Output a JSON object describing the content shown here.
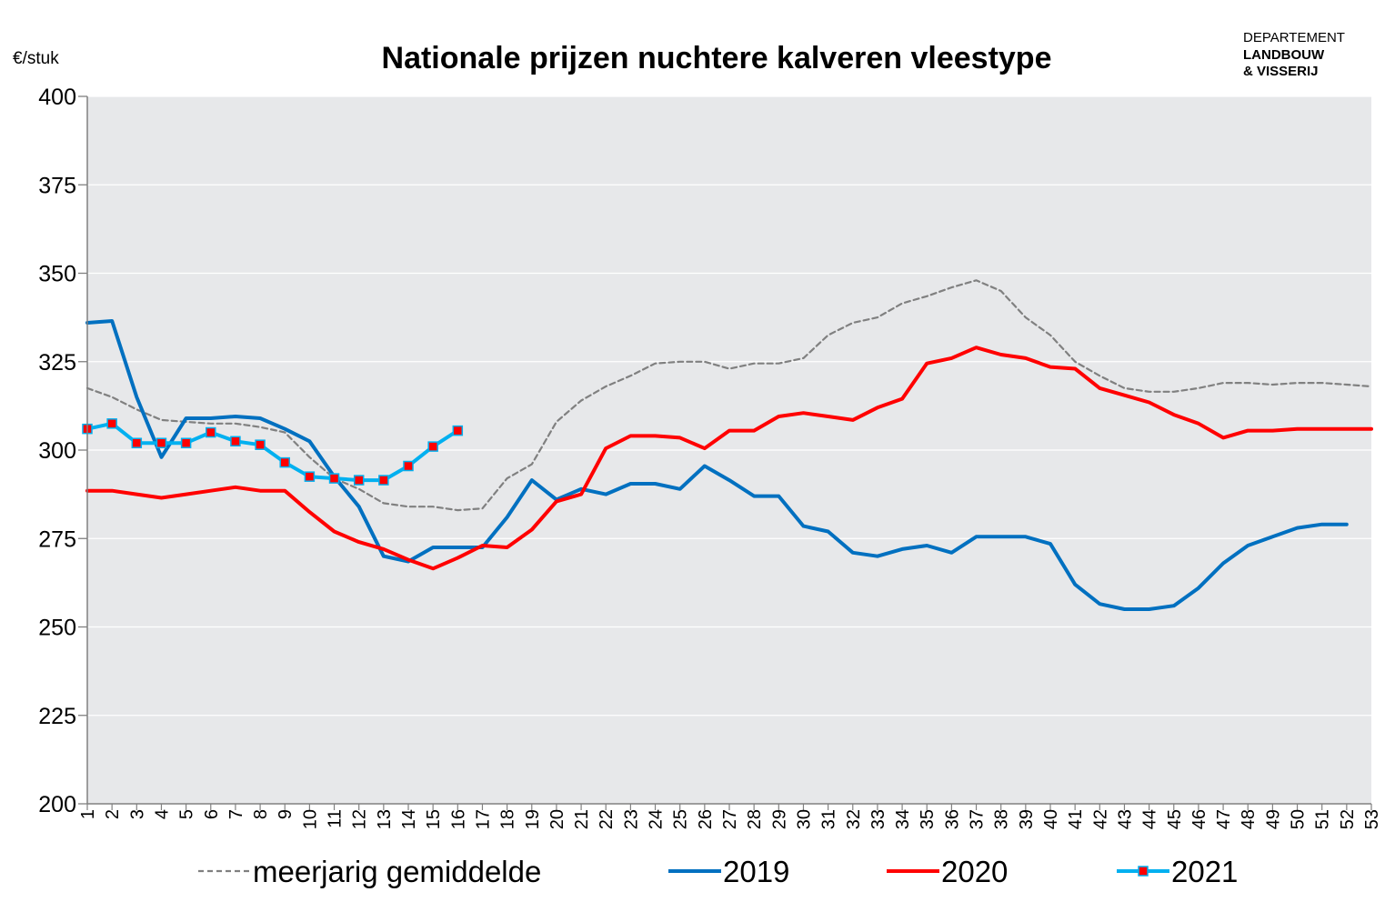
{
  "chart_data": {
    "type": "line",
    "title": "Nationale prijzen nuchtere kalveren vleestype",
    "ylabel": "€/stuk",
    "xlabel": "",
    "ylim": [
      200,
      400
    ],
    "yticks": [
      200,
      225,
      250,
      275,
      300,
      325,
      350,
      375,
      400
    ],
    "x": [
      1,
      2,
      3,
      4,
      5,
      6,
      7,
      8,
      9,
      10,
      11,
      12,
      13,
      14,
      15,
      16,
      17,
      18,
      19,
      20,
      21,
      22,
      23,
      24,
      25,
      26,
      27,
      28,
      29,
      30,
      31,
      32,
      33,
      34,
      35,
      36,
      37,
      38,
      39,
      40,
      41,
      42,
      43,
      44,
      45,
      46,
      47,
      48,
      49,
      50,
      51,
      52,
      53
    ],
    "grid": "horizontal",
    "legend_position": "bottom",
    "series": [
      {
        "name": "meerjarig gemiddelde",
        "color": "#808080",
        "style": "dashed",
        "values": [
          317.5,
          315,
          311.5,
          308.5,
          308,
          307.5,
          307.5,
          306.5,
          305,
          298,
          292,
          289,
          285,
          284,
          284,
          283,
          283.5,
          292,
          296,
          308,
          314,
          318,
          321,
          324.5,
          325,
          325,
          323,
          324.5,
          324.5,
          326,
          332.5,
          336,
          337.5,
          341.5,
          343.5,
          346,
          348,
          345,
          337.5,
          332.5,
          325,
          321,
          317.5,
          316.5,
          316.5,
          317.5,
          319,
          319,
          318.5,
          319,
          319,
          318.5,
          318
        ]
      },
      {
        "name": "2019",
        "color": "#0070c0",
        "style": "solid",
        "values": [
          336,
          336.5,
          315,
          298,
          309,
          309,
          309.5,
          309,
          306,
          302.5,
          292.5,
          284,
          270,
          268.5,
          272.5,
          272.5,
          272.5,
          281,
          291.5,
          286,
          289,
          287.5,
          290.5,
          290.5,
          289,
          295.5,
          291.5,
          287,
          287,
          278.5,
          277,
          271,
          270,
          272,
          273,
          271,
          275.5,
          275.5,
          275.5,
          273.5,
          262,
          256.5,
          255,
          255,
          256,
          261,
          268,
          273,
          275.5,
          278,
          279,
          279,
          null
        ]
      },
      {
        "name": "2020",
        "color": "#ff0000",
        "style": "solid",
        "values": [
          288.5,
          288.5,
          287.5,
          286.5,
          287.5,
          288.5,
          289.5,
          288.5,
          288.5,
          282.5,
          277,
          274,
          272,
          269,
          266.5,
          269.5,
          273,
          272.5,
          277.5,
          285.5,
          287.5,
          300.5,
          304,
          304,
          303.5,
          300.5,
          305.5,
          305.5,
          309.5,
          310.5,
          309.5,
          308.5,
          312,
          314.5,
          324.5,
          326,
          329,
          327,
          326,
          323.5,
          323,
          317.5,
          315.5,
          313.5,
          310,
          307.5,
          303.5,
          305.5,
          305.5,
          306,
          306,
          306,
          306
        ]
      },
      {
        "name": "2021",
        "color": "#00b0f0",
        "style": "solid-markers",
        "marker_color": "#ff0000",
        "values": [
          306,
          307.5,
          302,
          302,
          302,
          305,
          302.5,
          301.5,
          296.5,
          292.5,
          292,
          291.5,
          291.5,
          295.5,
          301,
          305.5,
          null,
          null,
          null,
          null,
          null,
          null,
          null,
          null,
          null,
          null,
          null,
          null,
          null,
          null,
          null,
          null,
          null,
          null,
          null,
          null,
          null,
          null,
          null,
          null,
          null,
          null,
          null,
          null,
          null,
          null,
          null,
          null,
          null,
          null,
          null,
          null,
          null
        ]
      }
    ]
  },
  "logo": {
    "line1": "DEPARTEMENT",
    "line2": "LANDBOUW",
    "line3": "& VISSERIJ"
  }
}
